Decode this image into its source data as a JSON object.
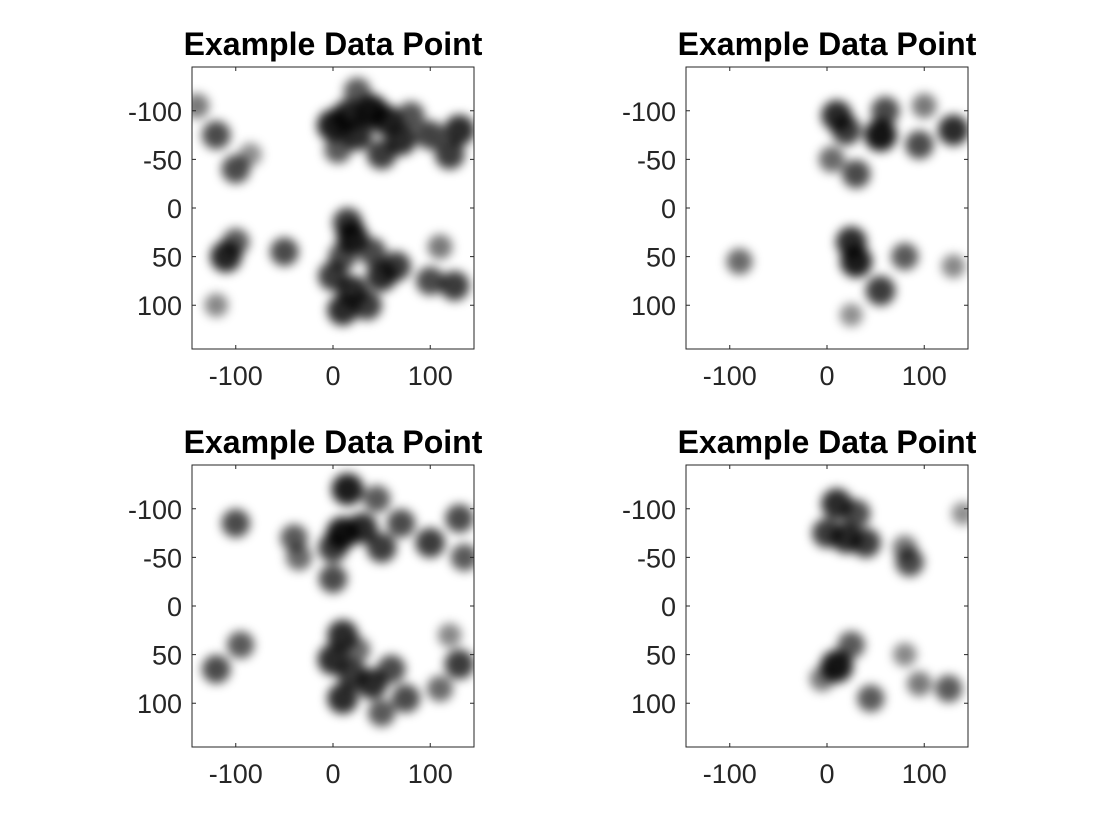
{
  "chart_data": [
    {
      "type": "heatmap",
      "title": "Example Data Point",
      "xlim": [
        -145,
        145
      ],
      "ylim": [
        -145,
        145
      ],
      "y_reversed": true,
      "xticks": [
        -100,
        0,
        100
      ],
      "xtick_labels": [
        "-100",
        "0",
        "100"
      ],
      "yticks": [
        -100,
        -50,
        0,
        50,
        100
      ],
      "ytick_labels": [
        "-100",
        "-50",
        "0",
        "50",
        "100"
      ],
      "colormap": [
        "#ffffff",
        "#000000"
      ],
      "grid": false,
      "blobs": [
        {
          "x": 0,
          "y": -85,
          "w": 0.9
        },
        {
          "x": 15,
          "y": -95,
          "w": 0.85
        },
        {
          "x": 25,
          "y": -75,
          "w": 0.8
        },
        {
          "x": 40,
          "y": -100,
          "w": 0.95
        },
        {
          "x": 55,
          "y": -90,
          "w": 0.85
        },
        {
          "x": 70,
          "y": -70,
          "w": 0.8
        },
        {
          "x": 50,
          "y": -55,
          "w": 0.7
        },
        {
          "x": 25,
          "y": -120,
          "w": 0.5
        },
        {
          "x": 80,
          "y": -95,
          "w": 0.55
        },
        {
          "x": 100,
          "y": -75,
          "w": 0.65
        },
        {
          "x": 130,
          "y": -80,
          "w": 0.8
        },
        {
          "x": 120,
          "y": -55,
          "w": 0.7
        },
        {
          "x": 5,
          "y": -60,
          "w": 0.5
        },
        {
          "x": -120,
          "y": -75,
          "w": 0.6
        },
        {
          "x": -100,
          "y": -40,
          "w": 0.6
        },
        {
          "x": -140,
          "y": -105,
          "w": 0.3
        },
        {
          "x": -85,
          "y": -55,
          "w": 0.15
        },
        {
          "x": 15,
          "y": 15,
          "w": 0.7
        },
        {
          "x": 20,
          "y": 30,
          "w": 0.9
        },
        {
          "x": 10,
          "y": 50,
          "w": 0.6
        },
        {
          "x": 40,
          "y": 45,
          "w": 0.6
        },
        {
          "x": 50,
          "y": 70,
          "w": 0.8
        },
        {
          "x": 0,
          "y": 70,
          "w": 0.7
        },
        {
          "x": 20,
          "y": 85,
          "w": 0.8
        },
        {
          "x": 10,
          "y": 105,
          "w": 0.8
        },
        {
          "x": 35,
          "y": 100,
          "w": 0.7
        },
        {
          "x": 65,
          "y": 60,
          "w": 0.7
        },
        {
          "x": -110,
          "y": 50,
          "w": 0.85
        },
        {
          "x": -100,
          "y": 35,
          "w": 0.5
        },
        {
          "x": -50,
          "y": 45,
          "w": 0.6
        },
        {
          "x": 100,
          "y": 75,
          "w": 0.6
        },
        {
          "x": 125,
          "y": 80,
          "w": 0.7
        },
        {
          "x": 110,
          "y": 40,
          "w": 0.3
        },
        {
          "x": -120,
          "y": 100,
          "w": 0.2
        }
      ]
    },
    {
      "type": "heatmap",
      "title": "Example Data Point",
      "xlim": [
        -145,
        145
      ],
      "ylim": [
        -145,
        145
      ],
      "y_reversed": true,
      "xticks": [
        -100,
        0,
        100
      ],
      "xtick_labels": [
        "-100",
        "0",
        "100"
      ],
      "yticks": [
        -100,
        -50,
        0,
        50,
        100
      ],
      "ytick_labels": [
        "-100",
        "-50",
        "0",
        "50",
        "100"
      ],
      "colormap": [
        "#ffffff",
        "#000000"
      ],
      "grid": false,
      "blobs": [
        {
          "x": 10,
          "y": -95,
          "w": 0.8
        },
        {
          "x": 20,
          "y": -80,
          "w": 0.7
        },
        {
          "x": 55,
          "y": -75,
          "w": 0.95
        },
        {
          "x": 60,
          "y": -100,
          "w": 0.6
        },
        {
          "x": 95,
          "y": -65,
          "w": 0.6
        },
        {
          "x": 130,
          "y": -80,
          "w": 0.8
        },
        {
          "x": 30,
          "y": -35,
          "w": 0.6
        },
        {
          "x": 5,
          "y": -50,
          "w": 0.4
        },
        {
          "x": 100,
          "y": -105,
          "w": 0.3
        },
        {
          "x": 25,
          "y": 35,
          "w": 0.8
        },
        {
          "x": 30,
          "y": 55,
          "w": 0.9
        },
        {
          "x": 55,
          "y": 85,
          "w": 0.7
        },
        {
          "x": 80,
          "y": 50,
          "w": 0.5
        },
        {
          "x": -90,
          "y": 55,
          "w": 0.4
        },
        {
          "x": 25,
          "y": 110,
          "w": 0.15
        },
        {
          "x": 130,
          "y": 60,
          "w": 0.2
        }
      ]
    },
    {
      "type": "heatmap",
      "title": "Example Data Point",
      "xlim": [
        -145,
        145
      ],
      "ylim": [
        -145,
        145
      ],
      "y_reversed": true,
      "xticks": [
        -100,
        0,
        100
      ],
      "xtick_labels": [
        "-100",
        "0",
        "100"
      ],
      "yticks": [
        -100,
        -50,
        0,
        50,
        100
      ],
      "ytick_labels": [
        "-100",
        "-50",
        "0",
        "50",
        "100"
      ],
      "colormap": [
        "#ffffff",
        "#000000"
      ],
      "grid": false,
      "blobs": [
        {
          "x": 15,
          "y": -120,
          "w": 0.9
        },
        {
          "x": 10,
          "y": -75,
          "w": 0.95
        },
        {
          "x": 30,
          "y": -80,
          "w": 0.8
        },
        {
          "x": 0,
          "y": -60,
          "w": 0.7
        },
        {
          "x": 50,
          "y": -60,
          "w": 0.7
        },
        {
          "x": 70,
          "y": -85,
          "w": 0.6
        },
        {
          "x": 45,
          "y": -110,
          "w": 0.5
        },
        {
          "x": -100,
          "y": -85,
          "w": 0.6
        },
        {
          "x": -40,
          "y": -70,
          "w": 0.5
        },
        {
          "x": -35,
          "y": -50,
          "w": 0.4
        },
        {
          "x": 0,
          "y": -28,
          "w": 0.6
        },
        {
          "x": 100,
          "y": -65,
          "w": 0.7
        },
        {
          "x": 130,
          "y": -90,
          "w": 0.6
        },
        {
          "x": 135,
          "y": -50,
          "w": 0.5
        },
        {
          "x": 10,
          "y": 30,
          "w": 0.8
        },
        {
          "x": 0,
          "y": 55,
          "w": 0.8
        },
        {
          "x": 20,
          "y": 70,
          "w": 0.7
        },
        {
          "x": 40,
          "y": 80,
          "w": 0.8
        },
        {
          "x": 10,
          "y": 95,
          "w": 0.8
        },
        {
          "x": 60,
          "y": 65,
          "w": 0.6
        },
        {
          "x": 75,
          "y": 95,
          "w": 0.6
        },
        {
          "x": 50,
          "y": 110,
          "w": 0.5
        },
        {
          "x": 25,
          "y": 45,
          "w": 0.4
        },
        {
          "x": -95,
          "y": 40,
          "w": 0.5
        },
        {
          "x": -120,
          "y": 65,
          "w": 0.6
        },
        {
          "x": 130,
          "y": 60,
          "w": 0.7
        },
        {
          "x": 110,
          "y": 85,
          "w": 0.4
        },
        {
          "x": 120,
          "y": 30,
          "w": 0.2
        }
      ]
    },
    {
      "type": "heatmap",
      "title": "Example Data Point",
      "xlim": [
        -145,
        145
      ],
      "ylim": [
        -145,
        145
      ],
      "y_reversed": true,
      "xticks": [
        -100,
        0,
        100
      ],
      "xtick_labels": [
        "-100",
        "0",
        "100"
      ],
      "yticks": [
        -100,
        -50,
        0,
        50,
        100
      ],
      "ytick_labels": [
        "-100",
        "-50",
        "0",
        "50",
        "100"
      ],
      "colormap": [
        "#ffffff",
        "#000000"
      ],
      "grid": false,
      "blobs": [
        {
          "x": 10,
          "y": -105,
          "w": 0.8
        },
        {
          "x": 0,
          "y": -75,
          "w": 0.7
        },
        {
          "x": 20,
          "y": -70,
          "w": 0.8
        },
        {
          "x": 30,
          "y": -95,
          "w": 0.6
        },
        {
          "x": 40,
          "y": -65,
          "w": 0.7
        },
        {
          "x": 85,
          "y": -45,
          "w": 0.6
        },
        {
          "x": 80,
          "y": -60,
          "w": 0.3
        },
        {
          "x": 10,
          "y": 62,
          "w": 0.95
        },
        {
          "x": 25,
          "y": 40,
          "w": 0.5
        },
        {
          "x": -5,
          "y": 75,
          "w": 0.3
        },
        {
          "x": 45,
          "y": 95,
          "w": 0.5
        },
        {
          "x": 80,
          "y": 50,
          "w": 0.2
        },
        {
          "x": 95,
          "y": 80,
          "w": 0.3
        },
        {
          "x": 125,
          "y": 85,
          "w": 0.5
        },
        {
          "x": 140,
          "y": -95,
          "w": 0.15
        }
      ]
    }
  ]
}
